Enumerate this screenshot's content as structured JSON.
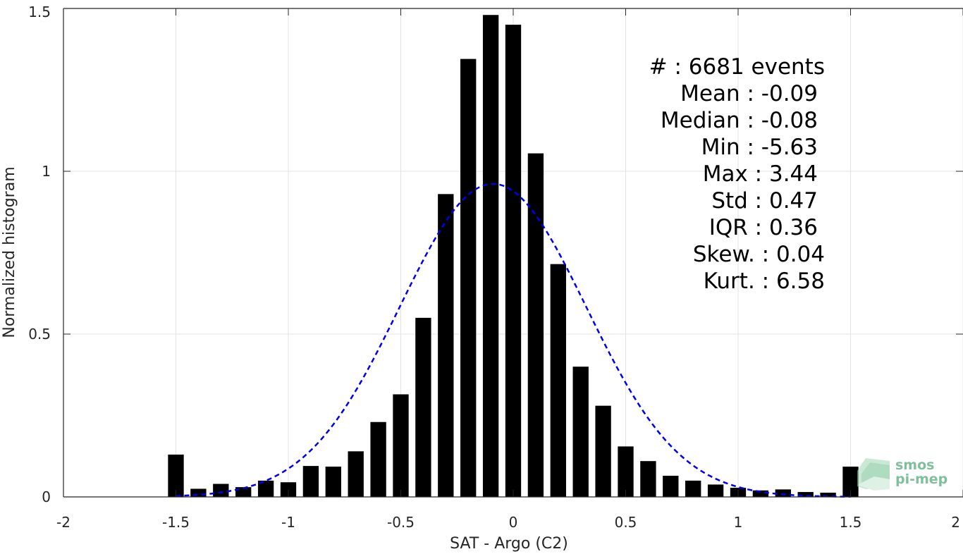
{
  "chart_data": {
    "type": "bar",
    "xlabel": "SAT - Argo (C2)",
    "ylabel": "Normalized histogram",
    "xlim": [
      -2,
      2
    ],
    "ylim": [
      0,
      1.5
    ],
    "xticks": [
      -2,
      -1.5,
      -1,
      -0.5,
      0,
      0.5,
      1,
      1.5,
      2
    ],
    "xtick_labels": [
      "-2",
      "-1.5",
      "-1",
      "-0.5",
      "0",
      "0.5",
      "1",
      "1.5",
      "2"
    ],
    "yticks": [
      0,
      0.5,
      1,
      1.5
    ],
    "ytick_labels": [
      "0",
      "0.5",
      "1",
      "1.5"
    ],
    "grid": true,
    "bar_width": 0.07,
    "x": [
      -1.5,
      -1.4,
      -1.3,
      -1.2,
      -1.1,
      -1.0,
      -0.9,
      -0.8,
      -0.7,
      -0.6,
      -0.5,
      -0.4,
      -0.3,
      -0.2,
      -0.1,
      0.0,
      0.1,
      0.2,
      0.3,
      0.4,
      0.5,
      0.6,
      0.7,
      0.8,
      0.9,
      1.0,
      1.1,
      1.2,
      1.3,
      1.4,
      1.5
    ],
    "values": [
      0.13,
      0.025,
      0.04,
      0.03,
      0.05,
      0.045,
      0.095,
      0.093,
      0.14,
      0.23,
      0.315,
      0.55,
      0.93,
      1.345,
      1.48,
      1.45,
      1.055,
      0.715,
      0.4,
      0.28,
      0.155,
      0.11,
      0.065,
      0.05,
      0.038,
      0.028,
      0.02,
      0.023,
      0.015,
      0.013,
      0.093
    ],
    "bar_color": "#000000",
    "fit_curve": {
      "style": "dashed",
      "color": "#0000ee",
      "distribution": "normal",
      "mean": -0.09,
      "std": 0.415,
      "x_range": [
        -1.5,
        1.5
      ]
    },
    "stats": [
      "#  : 6681 events",
      "Mean : -0.09",
      "Median : -0.08",
      "Min : -5.63",
      "Max : 3.44",
      "Std : 0.47",
      "IQR : 0.36",
      "Skew. : 0.04",
      "Kurt. : 6.58"
    ]
  },
  "logo": {
    "line1": "smos",
    "line2": "pi-mep",
    "color": "#7fbf9a"
  }
}
